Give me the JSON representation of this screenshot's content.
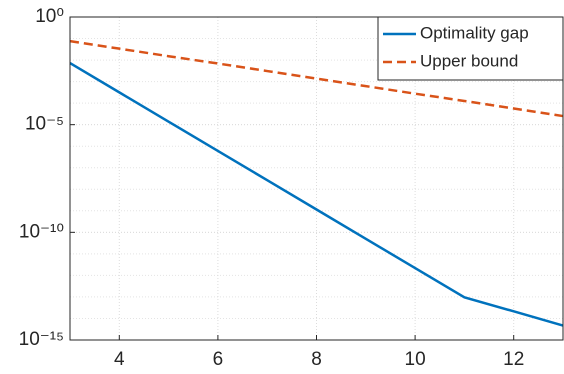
{
  "chart_data": {
    "type": "line",
    "x": [
      3,
      4,
      5,
      6,
      7,
      8,
      9,
      10,
      11,
      12,
      13
    ],
    "series": [
      {
        "name": "Optimality gap",
        "color": "#0072bd",
        "dash": "solid",
        "values": [
          0.00724,
          0.000316,
          1.38e-05,
          6.03e-07,
          2.63e-08,
          1.15e-09,
          5.01e-11,
          2.19e-12,
          9.55e-14,
          2.14e-14,
          4.68e-15
        ]
      },
      {
        "name": "Upper bound",
        "color": "#d95319",
        "dash": "dashed",
        "values": [
          0.0759,
          0.0339,
          0.0151,
          0.00692,
          0.00309,
          0.00138,
          0.000617,
          0.000275,
          0.000126,
          5.62e-05,
          2.51e-05
        ]
      }
    ],
    "xlim": [
      3,
      13
    ],
    "xticks": [
      4,
      6,
      8,
      10,
      12
    ],
    "ylim": [
      1e-15,
      1
    ],
    "yticks": [
      {
        "value": 1e-15,
        "label": "10⁻¹⁵"
      },
      {
        "value": 1e-10,
        "label": "10⁻¹⁰"
      },
      {
        "value": 1e-05,
        "label": "10⁻⁵"
      },
      {
        "value": 1,
        "label": "10⁰"
      }
    ],
    "ylog": true,
    "grid": true,
    "minor_grid": true,
    "legend": "top-right"
  }
}
